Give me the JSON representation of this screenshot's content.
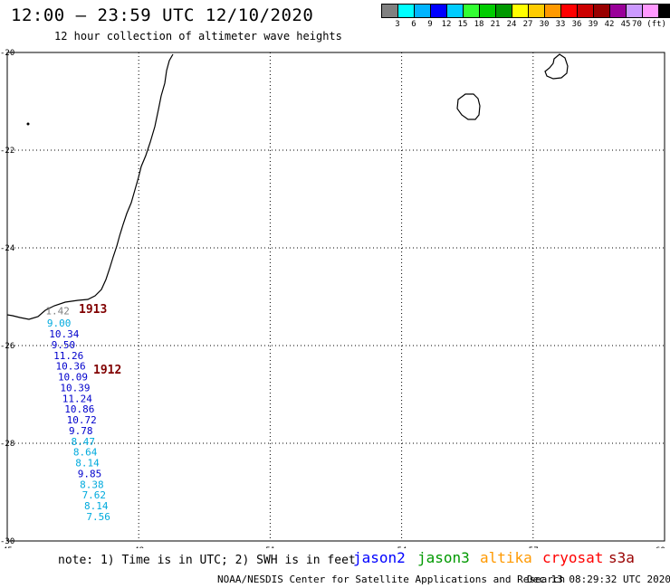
{
  "header": {
    "title": "12:00 – 23:59 UTC 12/10/2020",
    "subtitle": "12 hour collection of altimeter wave heights"
  },
  "colorbar": {
    "colors": [
      "#808080",
      "#00ffff",
      "#00b4ff",
      "#0000ff",
      "#00ccff",
      "#33ff33",
      "#00cc00",
      "#009900",
      "#ffff00",
      "#ffcc00",
      "#ff9900",
      "#ff0000",
      "#cc0000",
      "#990000",
      "#990099",
      "#cc99ff",
      "#ff99ff",
      "#000000"
    ],
    "labels": [
      "3",
      "6",
      "9",
      "12",
      "15",
      "18",
      "21",
      "24",
      "27",
      "30",
      "33",
      "36",
      "39",
      "42",
      "45",
      "70 (ft)"
    ]
  },
  "map": {
    "lon_range": [
      45,
      60
    ],
    "lat_range": [
      -30,
      -20
    ],
    "lon_ticks": [
      "45",
      "48",
      "51",
      "54",
      "57",
      "60"
    ],
    "lat_ticks": [
      "-20",
      "-22",
      "-24",
      "-26",
      "-28",
      "-30"
    ]
  },
  "passes": [
    {
      "label": "1913",
      "color": "#800000"
    },
    {
      "label": "1912",
      "color": "#800000"
    }
  ],
  "swh_points": [
    {
      "lat": -25.29,
      "lon": 46.0,
      "value": "1.42",
      "color": "#808080"
    },
    {
      "lat": -25.54,
      "lon": 46.03,
      "value": "9.00",
      "color": "#00aadd"
    },
    {
      "lat": -25.76,
      "lon": 46.08,
      "value": "10.34",
      "color": "#0000cc"
    },
    {
      "lat": -25.98,
      "lon": 46.13,
      "value": "9.50",
      "color": "#0000cc"
    },
    {
      "lat": -26.2,
      "lon": 46.18,
      "value": "11.26",
      "color": "#0000cc"
    },
    {
      "lat": -26.42,
      "lon": 46.23,
      "value": "10.36",
      "color": "#0000cc"
    },
    {
      "lat": -26.64,
      "lon": 46.28,
      "value": "10.09",
      "color": "#0000cc"
    },
    {
      "lat": -26.86,
      "lon": 46.33,
      "value": "10.39",
      "color": "#0000cc"
    },
    {
      "lat": -27.08,
      "lon": 46.38,
      "value": "11.24",
      "color": "#0000cc"
    },
    {
      "lat": -27.3,
      "lon": 46.43,
      "value": "10.86",
      "color": "#0000cc"
    },
    {
      "lat": -27.52,
      "lon": 46.48,
      "value": "10.72",
      "color": "#0000cc"
    },
    {
      "lat": -27.74,
      "lon": 46.53,
      "value": "9.78",
      "color": "#0000cc"
    },
    {
      "lat": -27.96,
      "lon": 46.58,
      "value": "8.47",
      "color": "#00aadd"
    },
    {
      "lat": -28.18,
      "lon": 46.63,
      "value": "8.64",
      "color": "#00aadd"
    },
    {
      "lat": -28.4,
      "lon": 46.68,
      "value": "8.14",
      "color": "#00aadd"
    },
    {
      "lat": -28.62,
      "lon": 46.73,
      "value": "9.85",
      "color": "#0000cc"
    },
    {
      "lat": -28.84,
      "lon": 46.78,
      "value": "8.38",
      "color": "#00aadd"
    },
    {
      "lat": -29.06,
      "lon": 46.83,
      "value": "7.62",
      "color": "#00aadd"
    },
    {
      "lat": -29.28,
      "lon": 46.88,
      "value": "8.14",
      "color": "#00aadd"
    },
    {
      "lat": -29.5,
      "lon": 46.93,
      "value": "7.56",
      "color": "#00aadd"
    }
  ],
  "footer": {
    "note": "note: 1) Time is in UTC; 2) SWH is in feet",
    "satellites": [
      {
        "name": "jason2",
        "color": "#0000ff"
      },
      {
        "name": "jason3",
        "color": "#009900"
      },
      {
        "name": "altika",
        "color": "#ff9900"
      },
      {
        "name": "cryosat",
        "color": "#ff0000"
      },
      {
        "name": "s3a",
        "color": "#990000"
      }
    ],
    "credit": "NOAA/NESDIS Center for Satellite Applications and Research",
    "timestamp": "Dec 13 08:29:32 UTC 2020"
  }
}
